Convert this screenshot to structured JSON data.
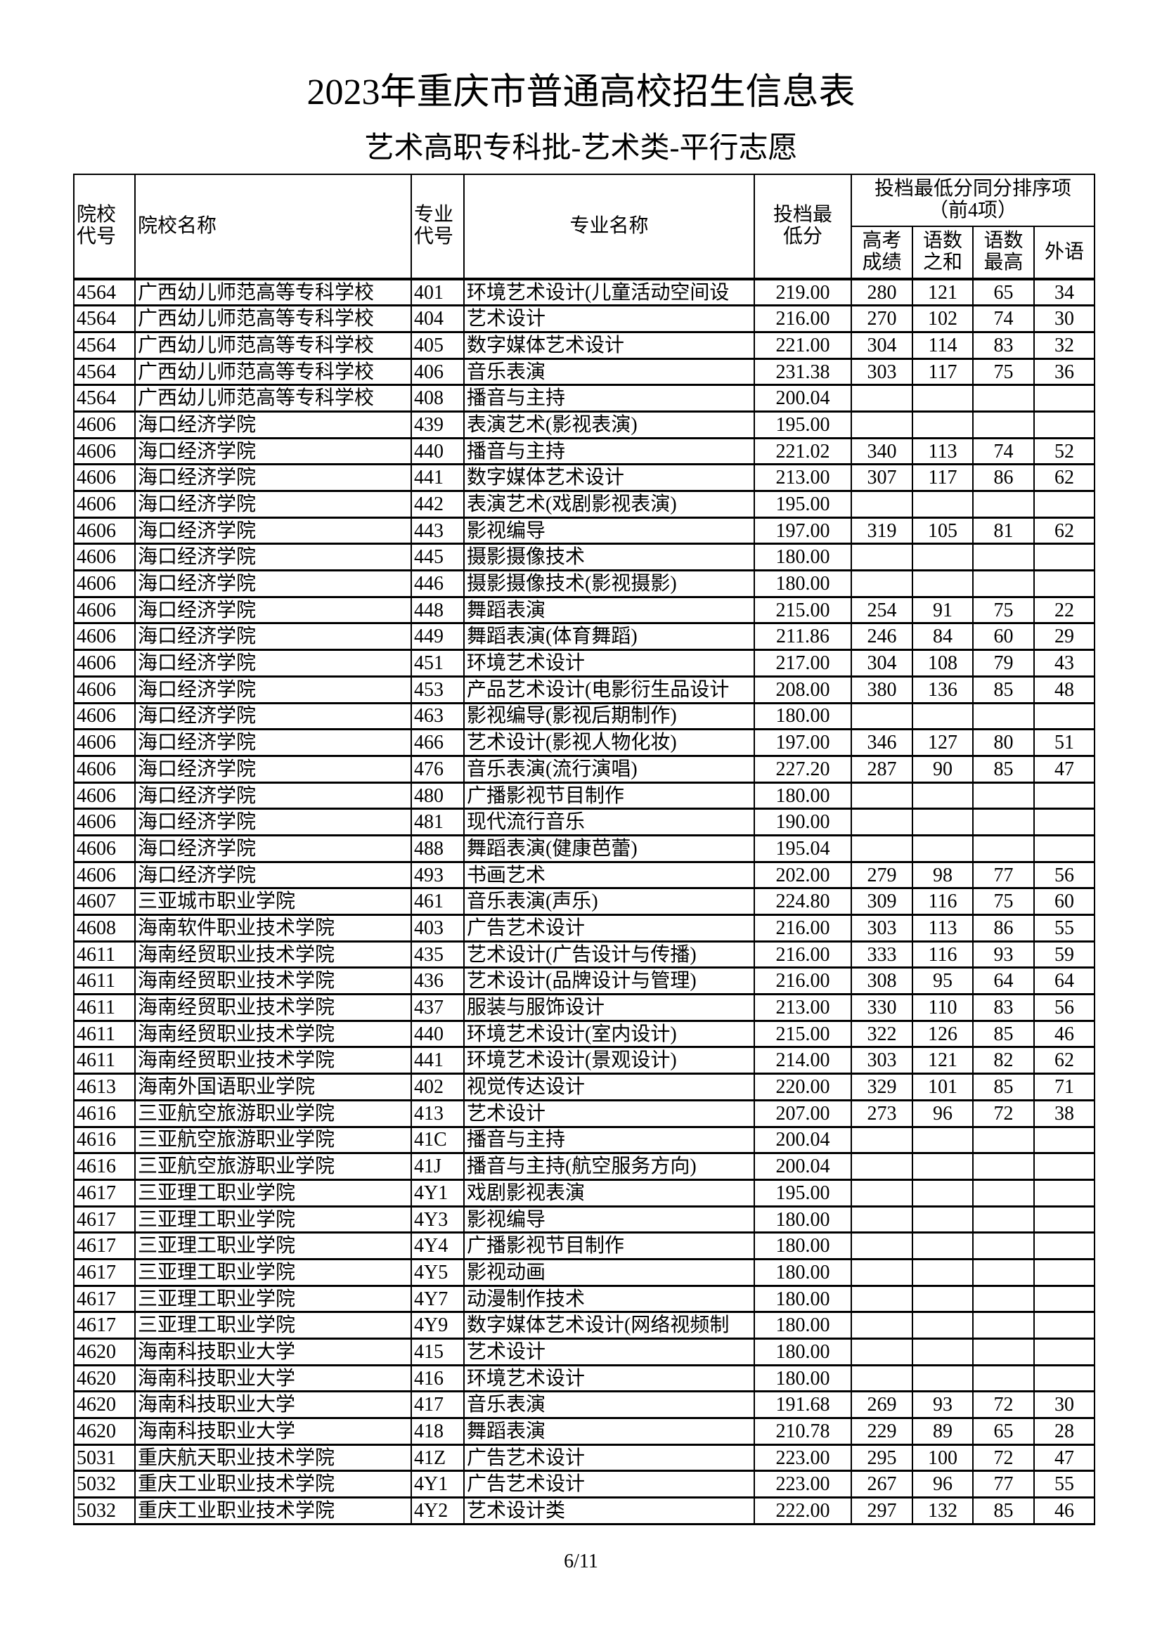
{
  "title": "2023年重庆市普通高校招生信息表",
  "subtitle": "艺术高职专科批-艺术类-平行志愿",
  "headers": {
    "school_code": "院校代号",
    "school_name": "院校名称",
    "major_code": "专业代号",
    "major_name": "专业名称",
    "min_score": "投档最低分",
    "tie_group": "投档最低分同分排序项（前4项）",
    "gaokao": "高考成绩",
    "chinese_math_sum": "语数之和",
    "chinese_math_max": "语数最高",
    "foreign_lang": "外语"
  },
  "rows": [
    [
      "4564",
      "广西幼儿师范高等专科学校",
      "401",
      "环境艺术设计(儿童活动空间设",
      "219.00",
      "280",
      "121",
      "65",
      "34"
    ],
    [
      "4564",
      "广西幼儿师范高等专科学校",
      "404",
      "艺术设计",
      "216.00",
      "270",
      "102",
      "74",
      "30"
    ],
    [
      "4564",
      "广西幼儿师范高等专科学校",
      "405",
      "数字媒体艺术设计",
      "221.00",
      "304",
      "114",
      "83",
      "32"
    ],
    [
      "4564",
      "广西幼儿师范高等专科学校",
      "406",
      "音乐表演",
      "231.38",
      "303",
      "117",
      "75",
      "36"
    ],
    [
      "4564",
      "广西幼儿师范高等专科学校",
      "408",
      "播音与主持",
      "200.04",
      "",
      "",
      "",
      ""
    ],
    [
      "4606",
      "海口经济学院",
      "439",
      "表演艺术(影视表演)",
      "195.00",
      "",
      "",
      "",
      ""
    ],
    [
      "4606",
      "海口经济学院",
      "440",
      "播音与主持",
      "221.02",
      "340",
      "113",
      "74",
      "52"
    ],
    [
      "4606",
      "海口经济学院",
      "441",
      "数字媒体艺术设计",
      "213.00",
      "307",
      "117",
      "86",
      "62"
    ],
    [
      "4606",
      "海口经济学院",
      "442",
      "表演艺术(戏剧影视表演)",
      "195.00",
      "",
      "",
      "",
      ""
    ],
    [
      "4606",
      "海口经济学院",
      "443",
      "影视编导",
      "197.00",
      "319",
      "105",
      "81",
      "62"
    ],
    [
      "4606",
      "海口经济学院",
      "445",
      "摄影摄像技术",
      "180.00",
      "",
      "",
      "",
      ""
    ],
    [
      "4606",
      "海口经济学院",
      "446",
      "摄影摄像技术(影视摄影)",
      "180.00",
      "",
      "",
      "",
      ""
    ],
    [
      "4606",
      "海口经济学院",
      "448",
      "舞蹈表演",
      "215.00",
      "254",
      "91",
      "75",
      "22"
    ],
    [
      "4606",
      "海口经济学院",
      "449",
      "舞蹈表演(体育舞蹈)",
      "211.86",
      "246",
      "84",
      "60",
      "29"
    ],
    [
      "4606",
      "海口经济学院",
      "451",
      "环境艺术设计",
      "217.00",
      "304",
      "108",
      "79",
      "43"
    ],
    [
      "4606",
      "海口经济学院",
      "453",
      "产品艺术设计(电影衍生品设计",
      "208.00",
      "380",
      "136",
      "85",
      "48"
    ],
    [
      "4606",
      "海口经济学院",
      "463",
      "影视编导(影视后期制作)",
      "180.00",
      "",
      "",
      "",
      ""
    ],
    [
      "4606",
      "海口经济学院",
      "466",
      "艺术设计(影视人物化妆)",
      "197.00",
      "346",
      "127",
      "80",
      "51"
    ],
    [
      "4606",
      "海口经济学院",
      "476",
      "音乐表演(流行演唱)",
      "227.20",
      "287",
      "90",
      "85",
      "47"
    ],
    [
      "4606",
      "海口经济学院",
      "480",
      "广播影视节目制作",
      "180.00",
      "",
      "",
      "",
      ""
    ],
    [
      "4606",
      "海口经济学院",
      "481",
      "现代流行音乐",
      "190.00",
      "",
      "",
      "",
      ""
    ],
    [
      "4606",
      "海口经济学院",
      "488",
      "舞蹈表演(健康芭蕾)",
      "195.04",
      "",
      "",
      "",
      ""
    ],
    [
      "4606",
      "海口经济学院",
      "493",
      "书画艺术",
      "202.00",
      "279",
      "98",
      "77",
      "56"
    ],
    [
      "4607",
      "三亚城市职业学院",
      "461",
      "音乐表演(声乐)",
      "224.80",
      "309",
      "116",
      "75",
      "60"
    ],
    [
      "4608",
      "海南软件职业技术学院",
      "403",
      "广告艺术设计",
      "216.00",
      "303",
      "113",
      "86",
      "55"
    ],
    [
      "4611",
      "海南经贸职业技术学院",
      "435",
      "艺术设计(广告设计与传播)",
      "216.00",
      "333",
      "116",
      "93",
      "59"
    ],
    [
      "4611",
      "海南经贸职业技术学院",
      "436",
      "艺术设计(品牌设计与管理)",
      "216.00",
      "308",
      "95",
      "64",
      "64"
    ],
    [
      "4611",
      "海南经贸职业技术学院",
      "437",
      "服装与服饰设计",
      "213.00",
      "330",
      "110",
      "83",
      "56"
    ],
    [
      "4611",
      "海南经贸职业技术学院",
      "440",
      "环境艺术设计(室内设计)",
      "215.00",
      "322",
      "126",
      "85",
      "46"
    ],
    [
      "4611",
      "海南经贸职业技术学院",
      "441",
      "环境艺术设计(景观设计)",
      "214.00",
      "303",
      "121",
      "82",
      "62"
    ],
    [
      "4613",
      "海南外国语职业学院",
      "402",
      "视觉传达设计",
      "220.00",
      "329",
      "101",
      "85",
      "71"
    ],
    [
      "4616",
      "三亚航空旅游职业学院",
      "413",
      "艺术设计",
      "207.00",
      "273",
      "96",
      "72",
      "38"
    ],
    [
      "4616",
      "三亚航空旅游职业学院",
      "41C",
      "播音与主持",
      "200.04",
      "",
      "",
      "",
      ""
    ],
    [
      "4616",
      "三亚航空旅游职业学院",
      "41J",
      "播音与主持(航空服务方向)",
      "200.04",
      "",
      "",
      "",
      ""
    ],
    [
      "4617",
      "三亚理工职业学院",
      "4Y1",
      "戏剧影视表演",
      "195.00",
      "",
      "",
      "",
      ""
    ],
    [
      "4617",
      "三亚理工职业学院",
      "4Y3",
      "影视编导",
      "180.00",
      "",
      "",
      "",
      ""
    ],
    [
      "4617",
      "三亚理工职业学院",
      "4Y4",
      "广播影视节目制作",
      "180.00",
      "",
      "",
      "",
      ""
    ],
    [
      "4617",
      "三亚理工职业学院",
      "4Y5",
      "影视动画",
      "180.00",
      "",
      "",
      "",
      ""
    ],
    [
      "4617",
      "三亚理工职业学院",
      "4Y7",
      "动漫制作技术",
      "180.00",
      "",
      "",
      "",
      ""
    ],
    [
      "4617",
      "三亚理工职业学院",
      "4Y9",
      "数字媒体艺术设计(网络视频制",
      "180.00",
      "",
      "",
      "",
      ""
    ],
    [
      "4620",
      "海南科技职业大学",
      "415",
      "艺术设计",
      "180.00",
      "",
      "",
      "",
      ""
    ],
    [
      "4620",
      "海南科技职业大学",
      "416",
      "环境艺术设计",
      "180.00",
      "",
      "",
      "",
      ""
    ],
    [
      "4620",
      "海南科技职业大学",
      "417",
      "音乐表演",
      "191.68",
      "269",
      "93",
      "72",
      "30"
    ],
    [
      "4620",
      "海南科技职业大学",
      "418",
      "舞蹈表演",
      "210.78",
      "229",
      "89",
      "65",
      "28"
    ],
    [
      "5031",
      "重庆航天职业技术学院",
      "41Z",
      "广告艺术设计",
      "223.00",
      "295",
      "100",
      "72",
      "47"
    ],
    [
      "5032",
      "重庆工业职业技术学院",
      "4Y1",
      "广告艺术设计",
      "223.00",
      "267",
      "96",
      "77",
      "55"
    ],
    [
      "5032",
      "重庆工业职业技术学院",
      "4Y2",
      "艺术设计类",
      "222.00",
      "297",
      "132",
      "85",
      "46"
    ]
  ],
  "page_number": "6/11"
}
